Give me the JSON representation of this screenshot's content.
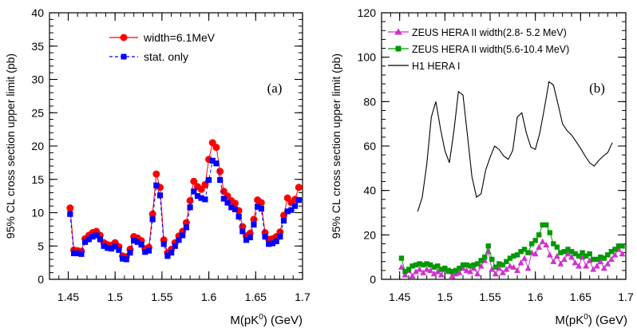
{
  "chart_data": [
    {
      "type": "line",
      "panel_label": "(a)",
      "xlabel_main": "M(pK",
      "xlabel_sup": "0",
      "xlabel_tail": ") (GeV)",
      "ylabel": "95% CL cross section upper limit (pb)",
      "xlim": [
        1.43,
        1.7
      ],
      "ylim": [
        0,
        40
      ],
      "xticks": [
        "1.45",
        "1.5",
        "1.55",
        "1.6",
        "1.65",
        "1.7"
      ],
      "yticks": [
        "0",
        "5",
        "10",
        "15",
        "20",
        "25",
        "30",
        "35",
        "40"
      ],
      "legend": "top-center",
      "series": [
        {
          "name": "width=6.1MeV",
          "color": "#ff0000",
          "marker": "circle",
          "x": [
            1.452,
            1.456,
            1.46,
            1.464,
            1.468,
            1.472,
            1.476,
            1.48,
            1.484,
            1.488,
            1.492,
            1.496,
            1.5,
            1.504,
            1.508,
            1.512,
            1.516,
            1.52,
            1.524,
            1.528,
            1.532,
            1.536,
            1.54,
            1.544,
            1.548,
            1.552,
            1.556,
            1.56,
            1.564,
            1.568,
            1.572,
            1.576,
            1.58,
            1.584,
            1.588,
            1.592,
            1.596,
            1.6,
            1.604,
            1.608,
            1.612,
            1.616,
            1.62,
            1.624,
            1.628,
            1.632,
            1.636,
            1.64,
            1.644,
            1.648,
            1.652,
            1.656,
            1.66,
            1.664,
            1.668,
            1.672,
            1.676,
            1.68,
            1.684,
            1.688,
            1.692,
            1.696
          ],
          "y": [
            10.7,
            4.4,
            4.3,
            4.2,
            6.1,
            6.6,
            7.0,
            7.2,
            6.6,
            5.5,
            5.2,
            5.1,
            5.5,
            4.9,
            3.5,
            3.4,
            4.5,
            6.4,
            6.2,
            5.8,
            4.6,
            4.8,
            9.8,
            15.8,
            13.8,
            5.9,
            4.0,
            4.5,
            5.5,
            6.5,
            7.2,
            8.5,
            11.8,
            14.7,
            13.9,
            13.5,
            14.2,
            18.0,
            20.5,
            19.8,
            16.2,
            13.2,
            12.5,
            11.8,
            11.4,
            10.3,
            7.9,
            6.5,
            6.9,
            9.0,
            11.9,
            11.5,
            7.0,
            6.0,
            6.1,
            6.4,
            7.1,
            9.6,
            12.2,
            11.5,
            12.0,
            13.8
          ]
        },
        {
          "name": "stat. only",
          "color": "#0000ff",
          "marker": "square",
          "x": [
            1.452,
            1.456,
            1.46,
            1.464,
            1.468,
            1.472,
            1.476,
            1.48,
            1.484,
            1.488,
            1.492,
            1.496,
            1.5,
            1.504,
            1.508,
            1.512,
            1.516,
            1.52,
            1.524,
            1.528,
            1.532,
            1.536,
            1.54,
            1.544,
            1.548,
            1.552,
            1.556,
            1.56,
            1.564,
            1.568,
            1.572,
            1.576,
            1.58,
            1.584,
            1.588,
            1.592,
            1.596,
            1.6,
            1.604,
            1.608,
            1.612,
            1.616,
            1.62,
            1.624,
            1.628,
            1.632,
            1.636,
            1.64,
            1.644,
            1.648,
            1.652,
            1.656,
            1.66,
            1.664,
            1.668,
            1.672,
            1.676,
            1.68,
            1.684,
            1.688,
            1.692,
            1.696
          ],
          "y": [
            9.8,
            3.9,
            3.9,
            3.8,
            5.6,
            6.0,
            6.4,
            6.6,
            6.0,
            5.0,
            4.7,
            4.6,
            4.9,
            4.4,
            3.1,
            3.0,
            4.0,
            5.8,
            5.6,
            5.2,
            4.1,
            4.3,
            9.0,
            14.1,
            12.6,
            5.3,
            3.5,
            4.0,
            5.0,
            5.9,
            6.6,
            7.8,
            10.8,
            13.2,
            12.5,
            12.2,
            12.0,
            14.9,
            17.8,
            17.4,
            14.9,
            12.1,
            11.5,
            10.8,
            10.5,
            9.4,
            7.2,
            5.9,
            6.3,
            8.2,
            10.9,
            10.6,
            6.4,
            5.3,
            5.4,
            5.7,
            6.4,
            8.8,
            10.2,
            10.4,
            11.0,
            11.9
          ]
        }
      ]
    },
    {
      "type": "line",
      "panel_label": "(b)",
      "xlabel_main": "M(pK",
      "xlabel_sup": "0",
      "xlabel_tail": ") (GeV)",
      "ylabel": "95% CL cross section upper limit (pb)",
      "xlim": [
        1.43,
        1.7
      ],
      "ylim": [
        0,
        120
      ],
      "xticks": [
        "1.45",
        "1.5",
        "1.55",
        "1.6",
        "1.65",
        "1.7"
      ],
      "yticks": [
        "0",
        "20",
        "40",
        "60",
        "80",
        "100",
        "120"
      ],
      "legend": "top-left",
      "series": [
        {
          "name": "ZEUS HERA II width(2.8- 5.2 MeV)",
          "color": "#cc33cc",
          "marker": "triangle",
          "x": [
            1.452,
            1.456,
            1.46,
            1.464,
            1.468,
            1.472,
            1.476,
            1.48,
            1.484,
            1.488,
            1.492,
            1.496,
            1.5,
            1.504,
            1.508,
            1.512,
            1.516,
            1.52,
            1.524,
            1.528,
            1.532,
            1.536,
            1.54,
            1.544,
            1.548,
            1.552,
            1.556,
            1.56,
            1.564,
            1.568,
            1.572,
            1.576,
            1.58,
            1.584,
            1.588,
            1.592,
            1.596,
            1.6,
            1.604,
            1.608,
            1.612,
            1.616,
            1.62,
            1.624,
            1.628,
            1.632,
            1.636,
            1.64,
            1.644,
            1.648,
            1.652,
            1.656,
            1.66,
            1.664,
            1.668,
            1.672,
            1.676,
            1.68,
            1.684,
            1.688,
            1.692,
            1.696
          ],
          "y": [
            5.5,
            2.0,
            4.0,
            1.5,
            3.5,
            4.5,
            3.0,
            4.5,
            4.0,
            2.5,
            3.5,
            2.0,
            4.5,
            3.5,
            1.5,
            2.5,
            3.0,
            5.0,
            4.0,
            3.5,
            5.0,
            2.5,
            6.0,
            8.5,
            12.5,
            4.5,
            2.5,
            5.0,
            3.0,
            4.5,
            6.0,
            5.5,
            4.0,
            7.5,
            9.5,
            5.0,
            12.0,
            11.5,
            14.5,
            17.0,
            15.5,
            11.0,
            8.0,
            10.5,
            7.0,
            9.0,
            11.5,
            10.0,
            7.5,
            6.0,
            10.0,
            6.0,
            8.5,
            4.5,
            6.0,
            8.0,
            5.0,
            7.0,
            9.0,
            11.0,
            13.5,
            11.5
          ]
        },
        {
          "name": "ZEUS HERA II width(5.6-10.4 MeV)",
          "color": "#009900",
          "marker": "square",
          "x": [
            1.452,
            1.456,
            1.46,
            1.464,
            1.468,
            1.472,
            1.476,
            1.48,
            1.484,
            1.488,
            1.492,
            1.496,
            1.5,
            1.504,
            1.508,
            1.512,
            1.516,
            1.52,
            1.524,
            1.528,
            1.532,
            1.536,
            1.54,
            1.544,
            1.548,
            1.552,
            1.556,
            1.56,
            1.564,
            1.568,
            1.572,
            1.576,
            1.58,
            1.584,
            1.588,
            1.592,
            1.596,
            1.6,
            1.604,
            1.608,
            1.612,
            1.616,
            1.62,
            1.624,
            1.628,
            1.632,
            1.636,
            1.64,
            1.644,
            1.648,
            1.652,
            1.656,
            1.66,
            1.664,
            1.668,
            1.672,
            1.676,
            1.68,
            1.684,
            1.688,
            1.692,
            1.696
          ],
          "y": [
            9.5,
            3.5,
            4.5,
            6.0,
            6.5,
            7.0,
            6.5,
            7.0,
            6.5,
            5.5,
            6.0,
            4.5,
            5.0,
            4.0,
            3.5,
            4.0,
            5.0,
            6.5,
            6.5,
            6.0,
            6.5,
            7.0,
            8.5,
            10.0,
            15.0,
            9.0,
            5.5,
            7.0,
            6.5,
            8.0,
            9.5,
            10.5,
            11.0,
            12.5,
            13.5,
            12.0,
            16.0,
            17.5,
            20.0,
            24.5,
            24.5,
            21.0,
            16.0,
            14.5,
            12.0,
            12.5,
            13.5,
            12.5,
            11.5,
            10.5,
            12.0,
            10.5,
            11.5,
            9.0,
            9.0,
            10.0,
            9.5,
            11.0,
            12.5,
            13.5,
            15.0,
            15.0
          ]
        },
        {
          "name": "H1 HERA I",
          "color": "#000000",
          "marker": "none",
          "x": [
            1.47,
            1.475,
            1.48,
            1.485,
            1.49,
            1.495,
            1.5,
            1.505,
            1.51,
            1.515,
            1.52,
            1.525,
            1.53,
            1.535,
            1.54,
            1.545,
            1.55,
            1.555,
            1.56,
            1.565,
            1.57,
            1.575,
            1.58,
            1.585,
            1.59,
            1.595,
            1.6,
            1.605,
            1.61,
            1.615,
            1.62,
            1.625,
            1.63,
            1.635,
            1.64,
            1.645,
            1.65,
            1.655,
            1.66,
            1.665,
            1.67,
            1.675,
            1.68,
            1.685
          ],
          "y": [
            30.5,
            37.0,
            52.0,
            73.0,
            80.0,
            68.0,
            58.0,
            52.5,
            67.0,
            84.5,
            83.0,
            64.5,
            46.0,
            37.0,
            38.5,
            49.0,
            55.0,
            60.0,
            58.5,
            55.5,
            54.0,
            58.0,
            73.0,
            75.0,
            66.0,
            59.5,
            58.5,
            66.0,
            77.0,
            89.0,
            87.5,
            79.0,
            70.0,
            67.0,
            65.0,
            62.0,
            59.0,
            55.5,
            52.5,
            51.0,
            53.5,
            55.5,
            57.0,
            61.5
          ]
        }
      ]
    }
  ]
}
